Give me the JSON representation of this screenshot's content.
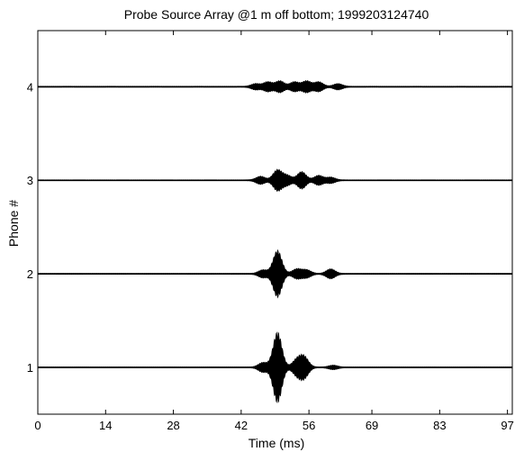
{
  "chart_data": {
    "type": "line",
    "title": "Probe Source Array @1 m off bottom; 1999203124740",
    "xlabel": "Time (ms)",
    "ylabel": "Phone #",
    "xlim": [
      0,
      98
    ],
    "ylim": [
      0.5,
      4.6
    ],
    "x_ticks": [
      0,
      14,
      28,
      42,
      56,
      69,
      83,
      97
    ],
    "x_tick_labels": [
      "0",
      "14",
      "28",
      "42",
      "56",
      "69",
      "83",
      "97"
    ],
    "y_ticks": [
      1,
      2,
      3,
      4
    ],
    "y_tick_labels": [
      "1",
      "2",
      "3",
      "4"
    ],
    "grid": false,
    "line_color": "#000000",
    "series": [
      {
        "baseline": 1,
        "envelope": [
          {
            "t": 46.5,
            "amp": 0.05
          },
          {
            "t": 49.5,
            "amp": 0.38
          },
          {
            "t": 53.5,
            "amp": 0.08
          },
          {
            "t": 55.0,
            "amp": 0.11
          },
          {
            "t": 61.0,
            "amp": 0.02
          }
        ]
      },
      {
        "baseline": 2,
        "envelope": [
          {
            "t": 46.5,
            "amp": 0.04
          },
          {
            "t": 49.5,
            "amp": 0.25
          },
          {
            "t": 53.5,
            "amp": 0.05
          },
          {
            "t": 55.5,
            "amp": 0.04
          },
          {
            "t": 60.5,
            "amp": 0.05
          }
        ]
      },
      {
        "baseline": 3,
        "envelope": [
          {
            "t": 46.0,
            "amp": 0.04
          },
          {
            "t": 49.5,
            "amp": 0.11
          },
          {
            "t": 51.5,
            "amp": 0.05
          },
          {
            "t": 54.5,
            "amp": 0.09
          },
          {
            "t": 58.0,
            "amp": 0.05
          },
          {
            "t": 60.5,
            "amp": 0.03
          }
        ]
      },
      {
        "baseline": 4,
        "envelope": [
          {
            "t": 45.0,
            "amp": 0.03
          },
          {
            "t": 47.5,
            "amp": 0.05
          },
          {
            "t": 50.0,
            "amp": 0.06
          },
          {
            "t": 53.0,
            "amp": 0.05
          },
          {
            "t": 55.5,
            "amp": 0.06
          },
          {
            "t": 58.0,
            "amp": 0.05
          },
          {
            "t": 62.0,
            "amp": 0.03
          }
        ]
      }
    ]
  }
}
